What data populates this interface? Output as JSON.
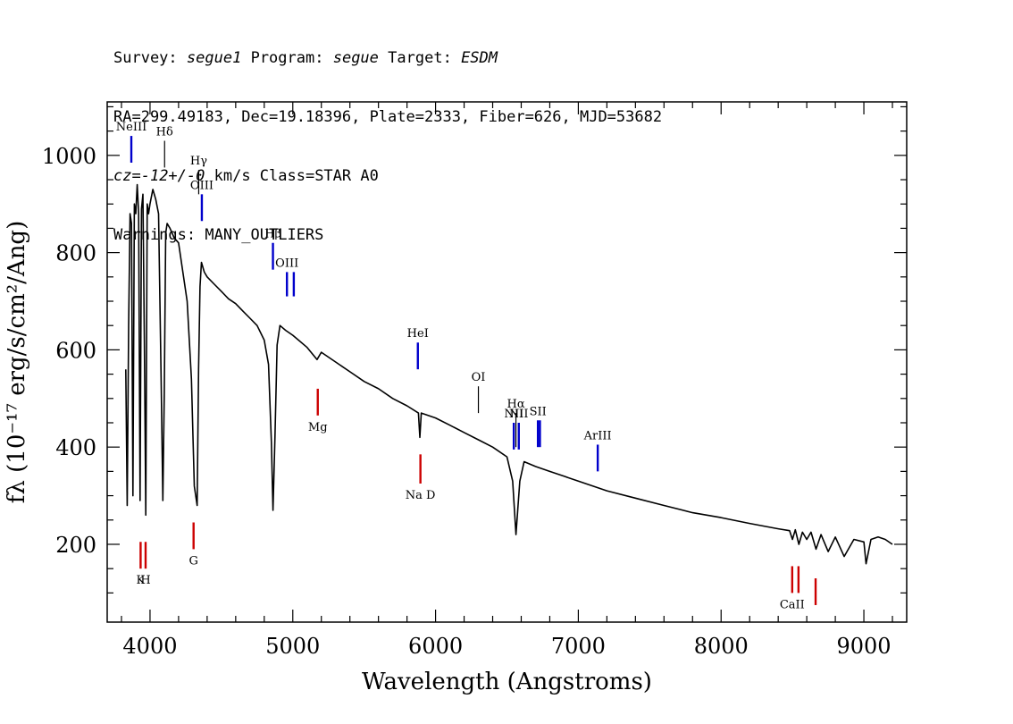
{
  "header": {
    "survey_label": "Survey:",
    "survey": "segue1",
    "program_label": "Program:",
    "program": "segue",
    "target_label": "Target:",
    "target": "ESDM",
    "line2": "RA=299.49183, Dec=19.18396, Plate=2333, Fiber=626, MJD=53682",
    "cz_label": "cz=",
    "cz_value": "-12+/-0",
    "cz_rest": " km/s Class=STAR A0",
    "warnings": "Warnings: MANY_OUTLIERS"
  },
  "chart_data": {
    "type": "line",
    "xlabel": "Wavelength (Angstroms)",
    "ylabel": "fλ (10⁻¹⁷ erg/s/cm²/Ang)",
    "xlim": [
      3700,
      9300
    ],
    "ylim": [
      40,
      1110
    ],
    "x_ticks": [
      4000,
      5000,
      6000,
      7000,
      8000,
      9000
    ],
    "y_ticks": [
      200,
      400,
      600,
      800,
      1000
    ],
    "series": [
      {
        "color": "#000000",
        "x": [
          3830,
          3840,
          3850,
          3860,
          3870,
          3880,
          3890,
          3900,
          3910,
          3920,
          3930,
          3940,
          3950,
          3960,
          3970,
          3980,
          3990,
          4000,
          4020,
          4040,
          4060,
          4080,
          4090,
          4100,
          4110,
          4120,
          4140,
          4170,
          4200,
          4230,
          4260,
          4290,
          4310,
          4330,
          4340,
          4350,
          4360,
          4380,
          4400,
          4450,
          4500,
          4550,
          4600,
          4650,
          4700,
          4750,
          4800,
          4830,
          4850,
          4861,
          4875,
          4890,
          4910,
          4950,
          5000,
          5100,
          5170,
          5200,
          5300,
          5400,
          5500,
          5600,
          5700,
          5800,
          5880,
          5890,
          5900,
          6000,
          6100,
          6200,
          6300,
          6400,
          6500,
          6540,
          6563,
          6590,
          6620,
          6700,
          6800,
          6900,
          7000,
          7200,
          7400,
          7600,
          7800,
          8000,
          8200,
          8400,
          8480,
          8500,
          8520,
          8545,
          8570,
          8600,
          8630,
          8665,
          8700,
          8750,
          8800,
          8862,
          8930,
          9000,
          9015,
          9050,
          9100,
          9150,
          9200
        ],
        "y": [
          560,
          280,
          650,
          880,
          860,
          300,
          900,
          880,
          940,
          880,
          290,
          890,
          920,
          620,
          260,
          900,
          880,
          900,
          930,
          910,
          880,
          500,
          290,
          510,
          840,
          860,
          850,
          830,
          820,
          760,
          700,
          540,
          320,
          280,
          560,
          730,
          780,
          760,
          750,
          735,
          720,
          705,
          695,
          680,
          665,
          650,
          620,
          570,
          410,
          270,
          420,
          610,
          650,
          640,
          630,
          605,
          580,
          595,
          575,
          555,
          535,
          520,
          500,
          485,
          470,
          420,
          470,
          460,
          445,
          430,
          415,
          400,
          380,
          330,
          220,
          330,
          370,
          360,
          350,
          340,
          330,
          310,
          295,
          280,
          265,
          255,
          243,
          232,
          228,
          210,
          230,
          200,
          225,
          210,
          225,
          190,
          220,
          185,
          215,
          175,
          210,
          205,
          160,
          210,
          215,
          210,
          200
        ]
      }
    ],
    "line_markers": [
      {
        "label": "NeIII",
        "x": 3869,
        "color": "#0000cc",
        "row": "top",
        "y0": 985,
        "y1": 1040
      },
      {
        "label": "Hδ",
        "x": 4102,
        "color": "#000000",
        "row": "top",
        "y0": 975,
        "y1": 1030
      },
      {
        "label": "Hγ",
        "x": 4341,
        "color": "#000000",
        "row": "top",
        "y0": 920,
        "y1": 970
      },
      {
        "label": "OIII",
        "x": 4363,
        "color": "#0000cc",
        "row": "top",
        "y0": 865,
        "y1": 920
      },
      {
        "label": "Hβ",
        "x": 4861,
        "color": "#0000cc",
        "row": "top",
        "y0": 765,
        "y1": 820
      },
      {
        "label": "OIII",
        "x": 4959,
        "color": "#0000cc",
        "row": "top",
        "y0": 710,
        "y1": 760
      },
      {
        "label": "",
        "x": 5007,
        "color": "#0000cc",
        "row": "top",
        "y0": 710,
        "y1": 760
      },
      {
        "label": "HeI",
        "x": 5876,
        "color": "#0000cc",
        "row": "top",
        "y0": 560,
        "y1": 615
      },
      {
        "label": "OI",
        "x": 6300,
        "color": "#000000",
        "row": "top",
        "y0": 470,
        "y1": 525
      },
      {
        "label": "NII",
        "x": 6548,
        "color": "#0000cc",
        "row": "top",
        "y0": 395,
        "y1": 450
      },
      {
        "label": "Hα",
        "x": 6563,
        "color": "#000000",
        "row": "top",
        "y0": 400,
        "y1": 470
      },
      {
        "label": "NII",
        "x": 6583,
        "color": "#0000cc",
        "row": "top",
        "y0": 395,
        "y1": 450
      },
      {
        "label": "SII",
        "x": 6717,
        "color": "#0000cc",
        "row": "top",
        "y0": 400,
        "y1": 455
      },
      {
        "label": "",
        "x": 6731,
        "color": "#0000cc",
        "row": "top",
        "y0": 400,
        "y1": 455
      },
      {
        "label": "ArIII",
        "x": 7136,
        "color": "#0000cc",
        "row": "top",
        "y0": 350,
        "y1": 405
      },
      {
        "label": "K",
        "x": 3934,
        "color": "#cc0000",
        "row": "bottom",
        "y0": 150,
        "y1": 205
      },
      {
        "label": "H",
        "x": 3969,
        "color": "#cc0000",
        "row": "bottom",
        "y0": 150,
        "y1": 205
      },
      {
        "label": "G",
        "x": 4305,
        "color": "#cc0000",
        "row": "bottom",
        "y0": 190,
        "y1": 245
      },
      {
        "label": "Mg",
        "x": 5175,
        "color": "#cc0000",
        "row": "bottom",
        "y0": 465,
        "y1": 520
      },
      {
        "label": "Na D",
        "x": 5894,
        "color": "#cc0000",
        "row": "bottom",
        "y0": 325,
        "y1": 385
      },
      {
        "label": "CaII",
        "x": 8498,
        "color": "#cc0000",
        "row": "bottom",
        "y0": 100,
        "y1": 155
      },
      {
        "label": "",
        "x": 8542,
        "color": "#cc0000",
        "row": "bottom",
        "y0": 100,
        "y1": 155
      },
      {
        "label": "",
        "x": 8662,
        "color": "#cc0000",
        "row": "bottom",
        "y0": 75,
        "y1": 130
      }
    ]
  }
}
